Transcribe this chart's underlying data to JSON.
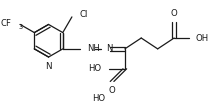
{
  "bg_color": "#ffffff",
  "line_color": "#1a1a1a",
  "lw": 0.9,
  "fs": 5.8,
  "fig_width": 2.1,
  "fig_height": 1.03,
  "dpi": 100,
  "xlim": [
    0,
    210
  ],
  "ylim": [
    0,
    103
  ]
}
